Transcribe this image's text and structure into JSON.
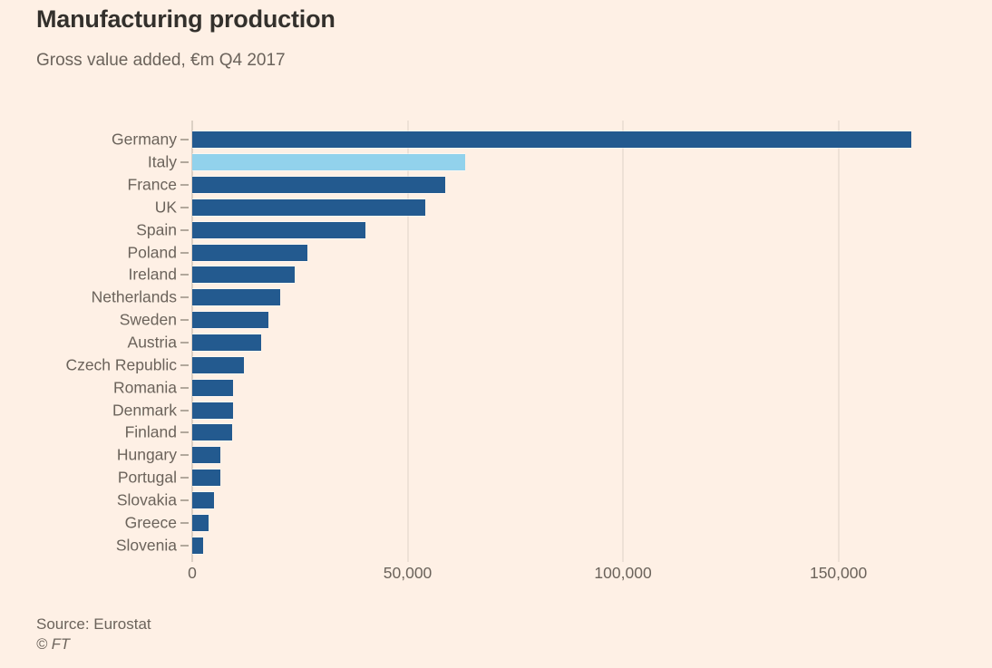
{
  "header": {
    "title": "Manufacturing production",
    "subtitle": "Gross value added, €m Q4 2017"
  },
  "footer": {
    "source": "Source: Eurostat",
    "credit": "© FT"
  },
  "colors": {
    "background": "#fef0e5",
    "bar": "#235a8f",
    "bar_highlight": "#92d2ec",
    "grid": "#ddd2c6",
    "axis_line": "#b9b0a4",
    "tick": "#b2a89c",
    "text": "#6b635b",
    "title_text": "#33302c"
  },
  "chart_data": {
    "type": "bar",
    "orientation": "horizontal",
    "title": "Manufacturing production",
    "subtitle": "Gross value added, €m Q4 2017",
    "unit": "€m",
    "period": "Q4 2017",
    "source": "Source: Eurostat",
    "legend": "none",
    "grid": "vertical",
    "xlim": [
      0,
      178500
    ],
    "x_ticks": [
      {
        "value": 0,
        "label": "0"
      },
      {
        "value": 50000,
        "label": "50,000"
      },
      {
        "value": 100000,
        "label": "100,000"
      },
      {
        "value": 150000,
        "label": "150,000"
      }
    ],
    "highlighted_category": "Italy",
    "categories": [
      "Germany",
      "Italy",
      "France",
      "UK",
      "Spain",
      "Poland",
      "Ireland",
      "Netherlands",
      "Sweden",
      "Austria",
      "Czech Republic",
      "Romania",
      "Denmark",
      "Finland",
      "Hungary",
      "Portugal",
      "Slovakia",
      "Greece",
      "Slovenia"
    ],
    "values": [
      167000,
      63400,
      58800,
      54000,
      40100,
      26700,
      23800,
      20400,
      17700,
      16000,
      12000,
      9500,
      9400,
      9300,
      6600,
      6500,
      5100,
      3700,
      2500
    ]
  }
}
